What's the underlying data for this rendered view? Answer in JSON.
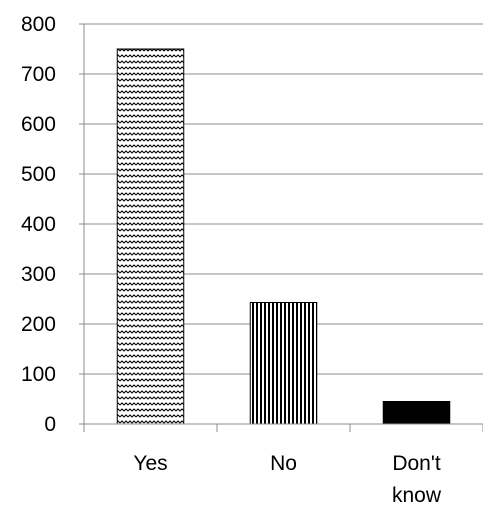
{
  "chart_data": {
    "type": "bar",
    "title": "",
    "xlabel": "",
    "ylabel": "",
    "categories": [
      [
        "Yes"
      ],
      [
        "No"
      ],
      [
        "Don't",
        "know"
      ]
    ],
    "values": [
      750,
      243,
      45
    ],
    "ylim": [
      0,
      800
    ],
    "yticks": [
      0,
      100,
      200,
      300,
      400,
      500,
      600,
      700,
      800
    ],
    "grid": true,
    "legend": "none",
    "bar_fills": [
      "zigzag-pattern",
      "vertical-stripes-pattern",
      "solid-black"
    ],
    "colors": {
      "bar_stroke": "#000000",
      "grid": "#8c8c8c",
      "axis": "#8c8c8c",
      "solid_bar": "#000000"
    }
  }
}
